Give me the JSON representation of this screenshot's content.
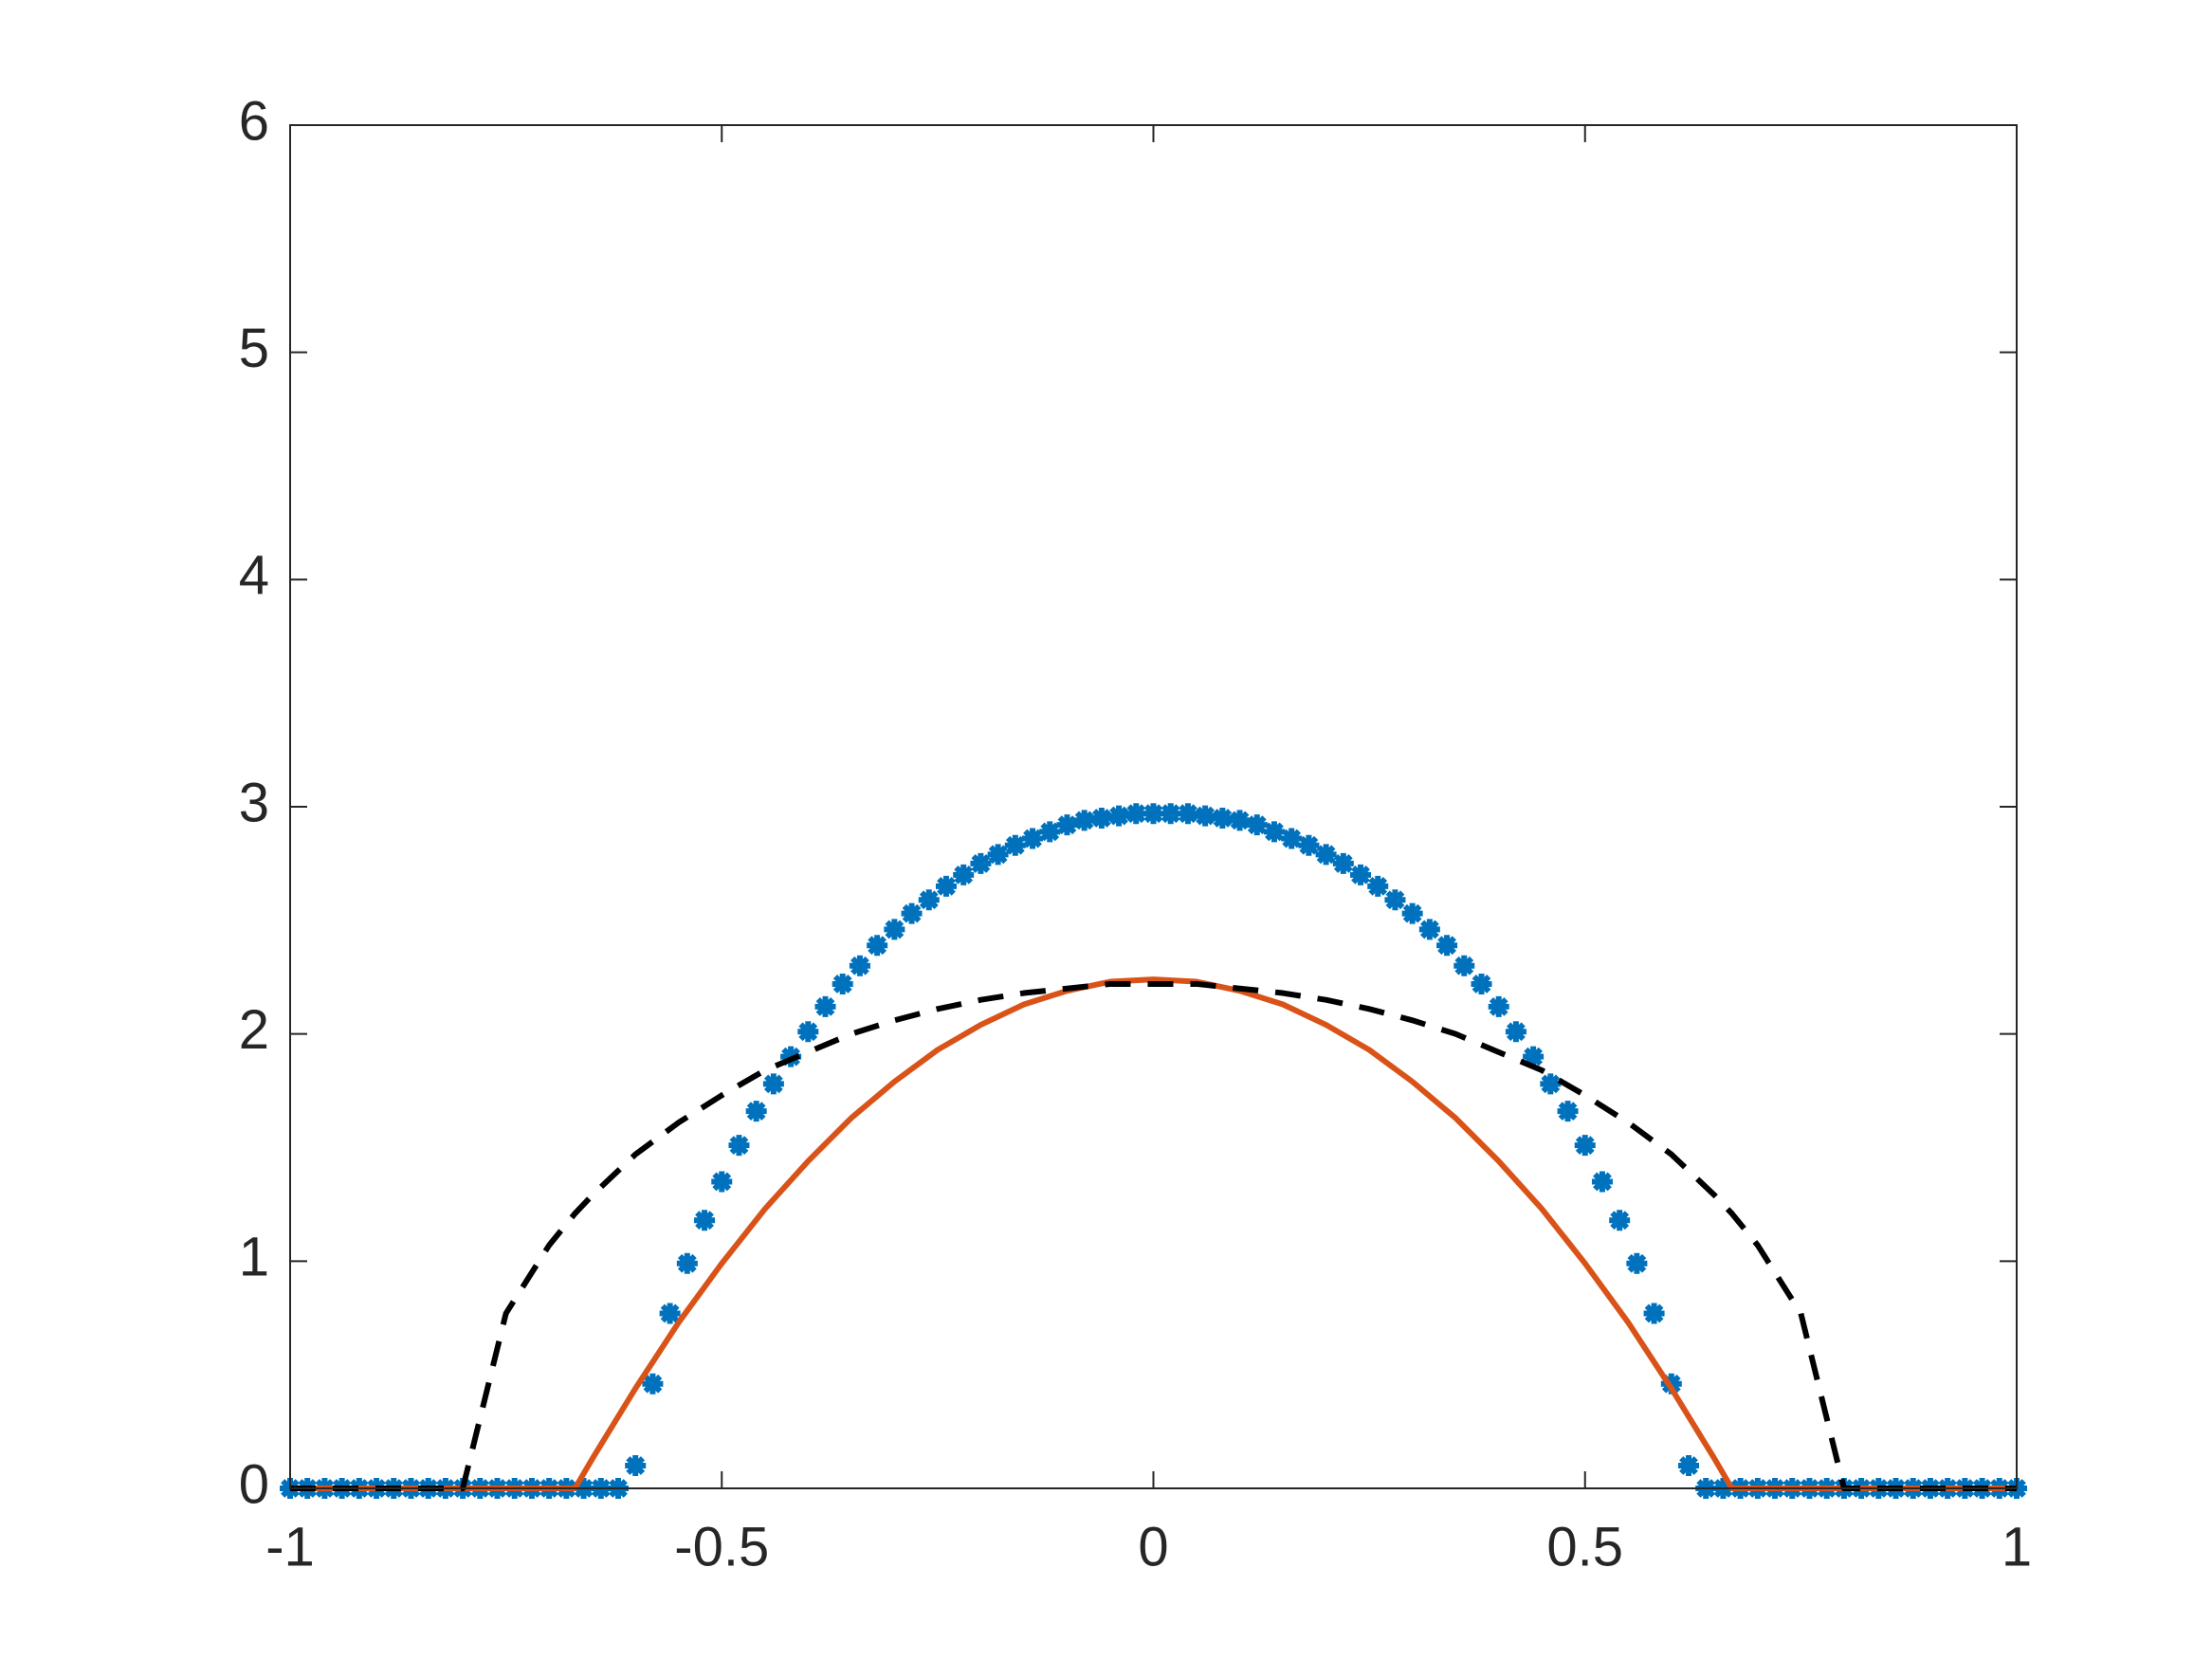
{
  "chart_data": {
    "type": "line",
    "xlim": [
      -1,
      1
    ],
    "ylim": [
      0,
      6
    ],
    "xticks": [
      -1,
      -0.5,
      0,
      0.5,
      1
    ],
    "yticks": [
      0,
      1,
      2,
      3,
      4,
      5,
      6
    ],
    "box": true,
    "series": [
      {
        "style": "markers",
        "color": "#0072bd",
        "x": [
          -1,
          -0.98,
          -0.96,
          -0.94,
          -0.92,
          -0.9,
          -0.88,
          -0.86,
          -0.84,
          -0.82,
          -0.8,
          -0.78,
          -0.76,
          -0.74,
          -0.72,
          -0.7,
          -0.68,
          -0.66,
          -0.64,
          -0.62,
          -0.6,
          -0.58,
          -0.56,
          -0.54,
          -0.52,
          -0.5,
          -0.48,
          -0.46,
          -0.44,
          -0.42,
          -0.4,
          -0.38,
          -0.36,
          -0.34,
          -0.32,
          -0.3,
          -0.28,
          -0.26,
          -0.24,
          -0.22,
          -0.2,
          -0.18,
          -0.16,
          -0.14,
          -0.12,
          -0.1,
          -0.08,
          -0.06,
          -0.04,
          -0.02,
          0,
          0.02,
          0.04,
          0.06,
          0.08,
          0.1,
          0.12,
          0.14,
          0.16,
          0.18,
          0.2,
          0.22,
          0.24,
          0.26,
          0.28,
          0.3,
          0.32,
          0.34,
          0.36,
          0.38,
          0.4,
          0.42,
          0.44,
          0.46,
          0.48,
          0.5,
          0.52,
          0.54,
          0.56,
          0.58,
          0.6,
          0.62,
          0.64,
          0.66,
          0.68,
          0.7,
          0.72,
          0.74,
          0.76,
          0.78,
          0.8,
          0.82,
          0.84,
          0.86,
          0.88,
          0.9,
          0.92,
          0.94,
          0.96,
          0.98,
          1
        ],
        "values": [
          0,
          0,
          0,
          0,
          0,
          0,
          0,
          0,
          0,
          0,
          0,
          0,
          0,
          0,
          0,
          0,
          0,
          0,
          0,
          0,
          0.1,
          0.46,
          0.77,
          0.99,
          1.18,
          1.35,
          1.51,
          1.66,
          1.78,
          1.9,
          2.01,
          2.12,
          2.22,
          2.3,
          2.39,
          2.46,
          2.53,
          2.59,
          2.65,
          2.7,
          2.75,
          2.79,
          2.83,
          2.86,
          2.89,
          2.92,
          2.94,
          2.95,
          2.96,
          2.97,
          2.97,
          2.97,
          2.97,
          2.96,
          2.95,
          2.94,
          2.92,
          2.89,
          2.86,
          2.83,
          2.79,
          2.75,
          2.7,
          2.65,
          2.59,
          2.53,
          2.46,
          2.39,
          2.3,
          2.22,
          2.12,
          2.01,
          1.9,
          1.78,
          1.66,
          1.51,
          1.35,
          1.18,
          0.99,
          0.77,
          0.46,
          0.1,
          0,
          0,
          0,
          0,
          0,
          0,
          0,
          0,
          0,
          0,
          0,
          0,
          0,
          0,
          0,
          0,
          0,
          0,
          0
        ]
      },
      {
        "style": "solid",
        "color": "#d95319",
        "x": [
          -1,
          -0.9,
          -0.8,
          -0.75,
          -0.7,
          -0.67,
          -0.65,
          -0.6,
          -0.55,
          -0.5,
          -0.45,
          -0.4,
          -0.35,
          -0.3,
          -0.25,
          -0.2,
          -0.15,
          -0.1,
          -0.05,
          0,
          0.05,
          0.1,
          0.15,
          0.2,
          0.25,
          0.3,
          0.35,
          0.4,
          0.45,
          0.5,
          0.55,
          0.6,
          0.65,
          0.67,
          0.7,
          0.75,
          0.8,
          0.9,
          1
        ],
        "values": [
          0,
          0,
          0,
          0,
          0,
          0,
          0.13,
          0.44,
          0.73,
          0.99,
          1.23,
          1.44,
          1.63,
          1.79,
          1.93,
          2.04,
          2.13,
          2.19,
          2.23,
          2.24,
          2.23,
          2.19,
          2.13,
          2.04,
          1.93,
          1.79,
          1.63,
          1.44,
          1.23,
          0.99,
          0.73,
          0.44,
          0.13,
          0,
          0,
          0,
          0,
          0,
          0
        ]
      },
      {
        "style": "dashed",
        "color": "#000000",
        "x": [
          -1,
          -0.9,
          -0.8,
          -0.75,
          -0.7,
          -0.67,
          -0.65,
          -0.6,
          -0.55,
          -0.5,
          -0.45,
          -0.4,
          -0.35,
          -0.3,
          -0.25,
          -0.2,
          -0.15,
          -0.1,
          -0.05,
          0,
          0.05,
          0.1,
          0.15,
          0.2,
          0.25,
          0.3,
          0.35,
          0.4,
          0.45,
          0.5,
          0.55,
          0.6,
          0.65,
          0.67,
          0.7,
          0.75,
          0.8,
          0.9,
          1
        ],
        "values": [
          0,
          0,
          0,
          0.77,
          1.07,
          1.21,
          1.29,
          1.47,
          1.61,
          1.73,
          1.84,
          1.92,
          2.0,
          2.06,
          2.11,
          2.15,
          2.18,
          2.2,
          2.22,
          2.22,
          2.22,
          2.2,
          2.18,
          2.15,
          2.11,
          2.06,
          2.0,
          1.92,
          1.84,
          1.73,
          1.61,
          1.47,
          1.29,
          1.21,
          1.07,
          0.77,
          0,
          0,
          0
        ]
      }
    ]
  }
}
